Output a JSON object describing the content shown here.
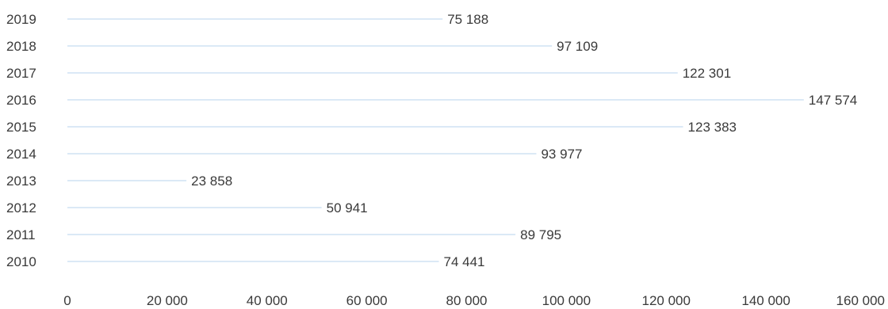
{
  "chart_data": {
    "type": "bar",
    "orientation": "horizontal",
    "categories": [
      "2010",
      "2011",
      "2012",
      "2013",
      "2014",
      "2015",
      "2016",
      "2017",
      "2018",
      "2019"
    ],
    "values": [
      74441,
      89795,
      50941,
      23858,
      93977,
      123383,
      147574,
      122301,
      97109,
      75188
    ],
    "value_labels": [
      "74 441",
      "89 795",
      "50 941",
      "23 858",
      "93 977",
      "123 383",
      "147 574",
      "122 301",
      "97 109",
      "75 188"
    ],
    "x_ticks": [
      0,
      20000,
      40000,
      60000,
      80000,
      100000,
      120000,
      140000,
      160000
    ],
    "x_tick_labels": [
      "0",
      "20 000",
      "40 000",
      "60 000",
      "80 000",
      "100 000",
      "120 000",
      "140 000",
      "160 000"
    ],
    "xlim": [
      0,
      160000
    ],
    "title": "",
    "xlabel": "",
    "ylabel": "",
    "grid": false,
    "legend": "none",
    "bar_color": "#5b9bd5",
    "text_color": "#3a3a3a"
  }
}
